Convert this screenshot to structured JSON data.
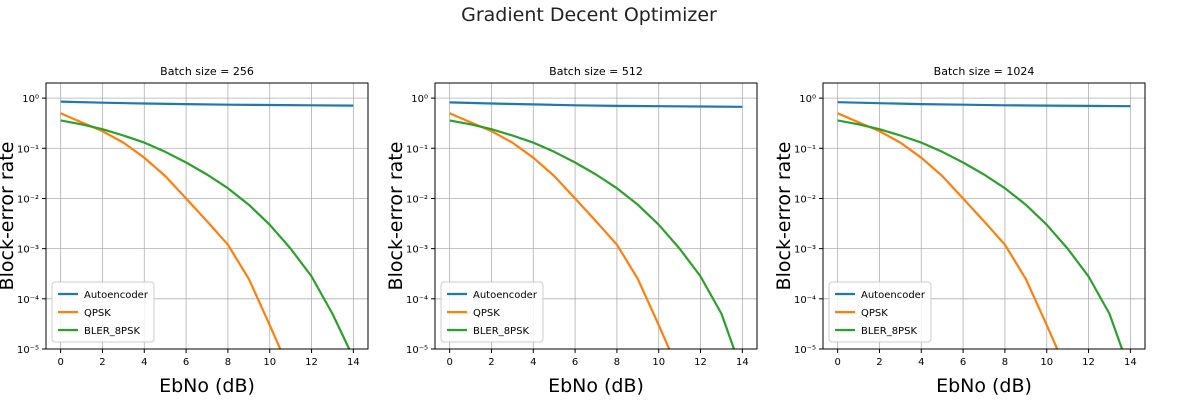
{
  "figure": {
    "title": "Gradient Decent Optimizer"
  },
  "colors": {
    "Autoencoder": "#1f77b4",
    "QPSK": "#ff7f0e",
    "BLER_8PSK": "#2ca02c",
    "grid": "#b0b0b0"
  },
  "chart_data": [
    {
      "type": "line",
      "title": "Batch size = 256",
      "xlabel": "EbNo (dB)",
      "ylabel": "Block-error rate",
      "xlim": [
        -0.7,
        14.7
      ],
      "ylim": [
        1e-05,
        2
      ],
      "yscale": "log",
      "xticks": [
        "0",
        "2",
        "4",
        "6",
        "8",
        "10",
        "12",
        "14"
      ],
      "yticks": [
        "10⁰",
        "10⁻¹",
        "10⁻²",
        "10⁻³",
        "10⁻⁴",
        "10⁻⁵"
      ],
      "grid": true,
      "legend": "lower-left",
      "series": [
        {
          "name": "Autoencoder",
          "x": [
            0,
            2,
            4,
            6,
            8,
            10,
            12,
            14
          ],
          "y": [
            0.85,
            0.81,
            0.78,
            0.76,
            0.74,
            0.73,
            0.72,
            0.71
          ]
        },
        {
          "name": "QPSK",
          "x": [
            0,
            1,
            2,
            3,
            4,
            5,
            6,
            7,
            8,
            9,
            10,
            10.5
          ],
          "y": [
            0.5,
            0.33,
            0.22,
            0.13,
            0.065,
            0.028,
            0.01,
            0.0035,
            0.0012,
            0.00025,
            3e-05,
            1e-05
          ]
        },
        {
          "name": "BLER_8PSK",
          "x": [
            0,
            1,
            2,
            3,
            4,
            5,
            6,
            7,
            8,
            9,
            10,
            11,
            12,
            13,
            13.8
          ],
          "y": [
            0.36,
            0.3,
            0.24,
            0.18,
            0.13,
            0.085,
            0.052,
            0.03,
            0.016,
            0.0075,
            0.003,
            0.001,
            0.00028,
            5e-05,
            1e-05
          ]
        }
      ]
    },
    {
      "type": "line",
      "title": "Batch size = 512",
      "xlabel": "EbNo (dB)",
      "ylabel": "Block-error rate",
      "xlim": [
        -0.7,
        14.7
      ],
      "ylim": [
        1e-05,
        2
      ],
      "yscale": "log",
      "xticks": [
        "0",
        "2",
        "4",
        "6",
        "8",
        "10",
        "12",
        "14"
      ],
      "yticks": [
        "10⁰",
        "10⁻¹",
        "10⁻²",
        "10⁻³",
        "10⁻⁴",
        "10⁻⁵"
      ],
      "grid": true,
      "legend": "lower-left",
      "series": [
        {
          "name": "Autoencoder",
          "x": [
            0,
            2,
            4,
            6,
            8,
            10,
            12,
            14
          ],
          "y": [
            0.82,
            0.78,
            0.75,
            0.72,
            0.7,
            0.69,
            0.68,
            0.67
          ]
        },
        {
          "name": "QPSK",
          "x": [
            0,
            1,
            2,
            3,
            4,
            5,
            6,
            7,
            8,
            9,
            10,
            10.5
          ],
          "y": [
            0.5,
            0.33,
            0.22,
            0.13,
            0.065,
            0.028,
            0.01,
            0.0035,
            0.0012,
            0.00025,
            3e-05,
            1e-05
          ]
        },
        {
          "name": "BLER_8PSK",
          "x": [
            0,
            1,
            2,
            3,
            4,
            5,
            6,
            7,
            8,
            9,
            10,
            11,
            12,
            13,
            13.6
          ],
          "y": [
            0.36,
            0.3,
            0.24,
            0.18,
            0.13,
            0.085,
            0.052,
            0.03,
            0.016,
            0.0075,
            0.003,
            0.001,
            0.00028,
            5e-05,
            1e-05
          ]
        }
      ]
    },
    {
      "type": "line",
      "title": "Batch size = 1024",
      "xlabel": "EbNo (dB)",
      "ylabel": "Block-error rate",
      "xlim": [
        -0.7,
        14.7
      ],
      "ylim": [
        1e-05,
        2
      ],
      "yscale": "log",
      "xticks": [
        "0",
        "2",
        "4",
        "6",
        "8",
        "10",
        "12",
        "14"
      ],
      "yticks": [
        "10⁰",
        "10⁻¹",
        "10⁻²",
        "10⁻³",
        "10⁻⁴",
        "10⁻⁵"
      ],
      "grid": true,
      "legend": "lower-left",
      "series": [
        {
          "name": "Autoencoder",
          "x": [
            0,
            2,
            4,
            6,
            8,
            10,
            12,
            14
          ],
          "y": [
            0.83,
            0.79,
            0.76,
            0.74,
            0.72,
            0.71,
            0.7,
            0.69
          ]
        },
        {
          "name": "QPSK",
          "x": [
            0,
            1,
            2,
            3,
            4,
            5,
            6,
            7,
            8,
            9,
            10,
            10.5
          ],
          "y": [
            0.5,
            0.33,
            0.22,
            0.13,
            0.065,
            0.028,
            0.01,
            0.0035,
            0.0012,
            0.00025,
            3e-05,
            1e-05
          ]
        },
        {
          "name": "BLER_8PSK",
          "x": [
            0,
            1,
            2,
            3,
            4,
            5,
            6,
            7,
            8,
            9,
            10,
            11,
            12,
            13,
            13.6
          ],
          "y": [
            0.36,
            0.3,
            0.24,
            0.18,
            0.13,
            0.085,
            0.052,
            0.03,
            0.016,
            0.0075,
            0.003,
            0.001,
            0.00028,
            5e-05,
            1e-05
          ]
        }
      ]
    }
  ]
}
